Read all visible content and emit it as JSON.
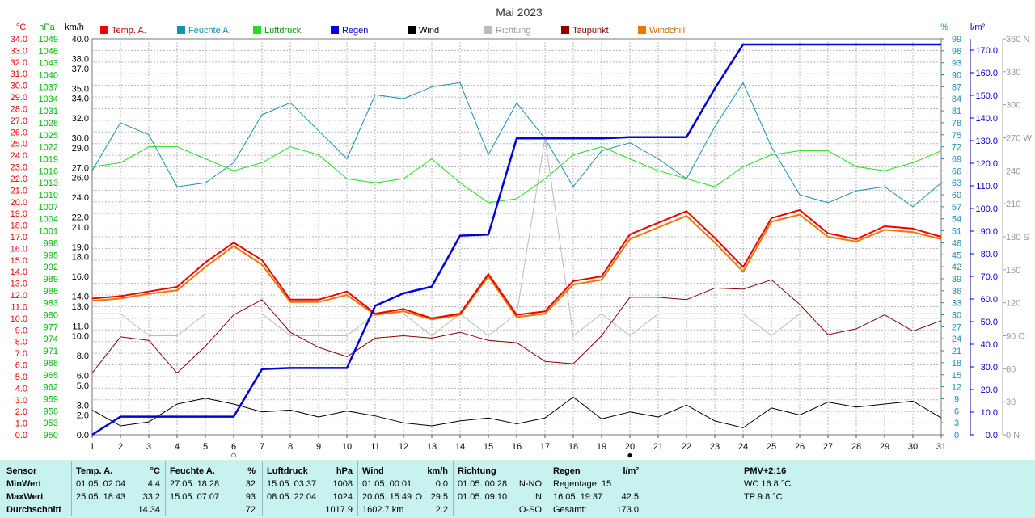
{
  "chart_data": {
    "type": "line",
    "title": "Mai 2023",
    "x": [
      1,
      2,
      3,
      4,
      5,
      6,
      7,
      8,
      9,
      10,
      11,
      12,
      13,
      14,
      15,
      16,
      17,
      18,
      19,
      20,
      21,
      22,
      23,
      24,
      25,
      26,
      27,
      28,
      29,
      30,
      31
    ],
    "axes": {
      "temp": {
        "unit": "°C",
        "min": 0,
        "max": 34,
        "color": "#ff0000"
      },
      "pressure": {
        "unit": "hPa",
        "min": 950,
        "max": 1049,
        "color": "#00cc00"
      },
      "wind": {
        "unit": "km/h",
        "min": 0,
        "max": 40,
        "color": "#000000"
      },
      "humidity": {
        "unit": "%",
        "min": 0,
        "max": 99,
        "color": "#00a0c0"
      },
      "rain": {
        "unit": "l/m²",
        "min": 0,
        "max": 175,
        "color": "#0000cc"
      },
      "direction": {
        "unit": "",
        "min": 0,
        "max": 360,
        "color": "#999999"
      }
    },
    "temp_ticks": [
      34.0,
      33.0,
      32.0,
      31.0,
      30.0,
      29.0,
      28.0,
      27.0,
      26.0,
      25.0,
      24.0,
      23.0,
      22.0,
      21.0,
      20.0,
      19.0,
      18.0,
      17.0,
      16.0,
      15.0,
      14.0,
      13.0,
      12.0,
      11.0,
      10.0,
      9.0,
      8.0,
      7.0,
      6.0,
      5.0,
      4.0,
      3.0,
      2.0,
      1.0,
      0.0
    ],
    "pressure_ticks": [
      1049,
      1046,
      1043,
      1040,
      1037,
      1034,
      1031,
      1028,
      1025,
      1022,
      1019,
      1016,
      1013,
      1010,
      1007,
      1004,
      1001,
      998,
      995,
      992,
      989,
      986,
      983,
      980,
      977,
      974,
      971,
      968,
      965,
      962,
      959,
      956,
      953,
      950
    ],
    "wind_ticks": [
      "40.0",
      "38.0",
      "37.0",
      "35.0",
      "34.0",
      "32.0",
      "30.0",
      "29.0",
      "27.0",
      "26.0",
      "24.0",
      "22.0",
      "21.0",
      "19.0",
      "18.0",
      "16.0",
      "14.0",
      "13.0",
      "11.0",
      "10.0",
      "8.0",
      "6.0",
      "5.0",
      "3.0",
      "2.0",
      "0.0"
    ],
    "humidity_ticks": [
      99,
      96,
      93,
      90,
      87,
      84,
      81,
      78,
      75,
      72,
      69,
      66,
      63,
      60,
      57,
      54,
      51,
      48,
      45,
      42,
      39,
      36,
      33,
      30,
      27,
      24,
      21,
      18,
      15,
      12,
      9,
      6,
      3,
      0
    ],
    "rain_ticks": [
      "170.0",
      "160.0",
      "150.0",
      "140.0",
      "130.0",
      "120.0",
      "110.0",
      "100.0",
      "90.0",
      "80.0",
      "70.0",
      "60.0",
      "50.0",
      "40.0",
      "30.0",
      "20.0",
      "10.0",
      "0.0"
    ],
    "direction_ticks": [
      {
        "v": 360,
        "t": "360 N"
      },
      {
        "v": 330,
        "t": "330"
      },
      {
        "v": 300,
        "t": "300"
      },
      {
        "v": 270,
        "t": "270 W"
      },
      {
        "v": 240,
        "t": "240"
      },
      {
        "v": 210,
        "t": "210"
      },
      {
        "v": 180,
        "t": "180 S"
      },
      {
        "v": 150,
        "t": "150"
      },
      {
        "v": 120,
        "t": "120"
      },
      {
        "v": 90,
        "t": "90 O"
      },
      {
        "v": 60,
        "t": "60"
      },
      {
        "v": 30,
        "t": "30"
      },
      {
        "v": 0,
        "t": "0 N"
      }
    ],
    "series": [
      {
        "name": "Feuchte A.",
        "axis": "humidity",
        "color": "#1a8fb3",
        "width": 1,
        "values": [
          66,
          78,
          75,
          62,
          63,
          68,
          80,
          83,
          76,
          69,
          85,
          84,
          87,
          88,
          70,
          83,
          74,
          62,
          71,
          73,
          69,
          64,
          77,
          88,
          72,
          60,
          58,
          61,
          62,
          57,
          63
        ]
      },
      {
        "name": "Luftdruck",
        "axis": "pressure",
        "color": "#22dd22",
        "width": 1,
        "values": [
          1017,
          1018,
          1022,
          1022,
          1019,
          1016,
          1018,
          1022,
          1020,
          1014,
          1013,
          1014,
          1019,
          1013,
          1008,
          1009,
          1014,
          1020,
          1022,
          1019,
          1016,
          1014,
          1012,
          1017,
          1020,
          1021,
          1021,
          1017,
          1016,
          1018,
          1021
        ]
      },
      {
        "name": "Richtung",
        "axis": "direction",
        "color": "#bbbbbb",
        "width": 1,
        "values": [
          110,
          110,
          90,
          90,
          110,
          110,
          110,
          90,
          90,
          90,
          110,
          110,
          90,
          110,
          90,
          110,
          270,
          90,
          110,
          90,
          110,
          110,
          110,
          110,
          90,
          110,
          110,
          110,
          110,
          110,
          110
        ]
      },
      {
        "name": "Wind",
        "axis": "wind",
        "color": "#000000",
        "width": 1,
        "values": [
          2.5,
          0.9,
          1.3,
          3.1,
          3.7,
          3.1,
          2.3,
          2.5,
          1.8,
          2.4,
          1.9,
          1.2,
          0.9,
          1.4,
          1.7,
          1.1,
          1.7,
          3.8,
          1.6,
          2.3,
          1.8,
          3.0,
          1.4,
          0.7,
          2.7,
          2.0,
          3.3,
          2.8,
          3.1,
          3.4,
          1.7
        ]
      },
      {
        "name": "Taupunkt",
        "axis": "temp",
        "color": "#880000",
        "width": 1,
        "values": [
          5.3,
          8.4,
          8.1,
          5.3,
          7.6,
          10.3,
          11.6,
          8.8,
          7.5,
          6.7,
          8.3,
          8.5,
          8.3,
          8.8,
          8.1,
          7.9,
          6.3,
          6.1,
          8.5,
          11.8,
          11.8,
          11.6,
          12.6,
          12.5,
          13.3,
          11.2,
          8.6,
          9.1,
          10.3,
          8.9,
          9.8
        ]
      },
      {
        "name": "Windchill",
        "axis": "temp",
        "color": "#ee7700",
        "width": 2,
        "values": [
          11.5,
          11.7,
          12.1,
          12.4,
          14.4,
          16.2,
          14.6,
          11.4,
          11.4,
          12.0,
          10.3,
          10.6,
          9.9,
          10.3,
          13.6,
          10.1,
          10.4,
          12.9,
          13.3,
          16.8,
          17.8,
          18.8,
          16.5,
          14.0,
          18.3,
          18.9,
          17.0,
          16.6,
          17.6,
          17.4,
          16.8
        ]
      },
      {
        "name": "Temp. A.",
        "axis": "temp",
        "color": "#ee0000",
        "width": 2,
        "values": [
          11.7,
          11.9,
          12.3,
          12.7,
          14.8,
          16.5,
          15.0,
          11.6,
          11.6,
          12.3,
          10.4,
          10.8,
          10.0,
          10.4,
          13.8,
          10.3,
          10.6,
          13.2,
          13.6,
          17.2,
          18.2,
          19.2,
          16.9,
          14.4,
          18.6,
          19.3,
          17.3,
          16.8,
          17.9,
          17.7,
          17.0
        ]
      },
      {
        "name": "Regen",
        "axis": "rain",
        "color": "#0000dd",
        "width": 2.5,
        "step": true,
        "values": [
          0,
          8,
          8,
          8,
          8,
          8,
          29,
          29.5,
          29.5,
          29.5,
          57,
          62.5,
          65.5,
          88,
          88.5,
          131,
          131,
          131,
          131,
          131.5,
          131.5,
          131.5,
          153,
          172.5,
          172.5,
          172.5,
          172.5,
          172.5,
          172.5,
          172.5,
          172.5
        ]
      }
    ],
    "legend": [
      {
        "name": "Temp. A.",
        "color": "#ee0000",
        "text_color": "#cc0000"
      },
      {
        "name": "Feuchte A.",
        "color": "#1a8fb3",
        "text_color": "#1a8fb3"
      },
      {
        "name": "Luftdruck",
        "color": "#22dd22",
        "text_color": "#009900"
      },
      {
        "name": "Regen",
        "color": "#0000dd",
        "text_color": "#0000cc"
      },
      {
        "name": "Wind",
        "color": "#000000",
        "text_color": "#000000"
      },
      {
        "name": "Richtung",
        "color": "#bbbbbb",
        "text_color": "#999999"
      },
      {
        "name": "Taupunkt",
        "color": "#880000",
        "text_color": "#880000"
      },
      {
        "name": "Windchill",
        "color": "#ee7700",
        "text_color": "#cc6600"
      }
    ],
    "markers": [
      {
        "day": 6,
        "symbol": "○"
      },
      {
        "day": 20,
        "symbol": "●"
      }
    ],
    "grid": true
  },
  "footer": {
    "sensor": {
      "title": "Sensor",
      "rows": [
        "MinWert",
        "MaxWert",
        "Durchschnitt"
      ]
    },
    "temp": {
      "title": "Temp. A.",
      "unit": "°C",
      "min_ts": "01.05.  02:04",
      "min_v": "4.4",
      "max_ts": "25.05.  18:43",
      "max_v": "33.2",
      "avg": "14.34"
    },
    "humidity": {
      "title": "Feuchte A.",
      "unit": "%",
      "min_ts": "27.05.  18:28",
      "min_v": "32",
      "max_ts": "15.05.  07:07",
      "max_v": "93",
      "avg": "72"
    },
    "pressure": {
      "title": "Luftdruck",
      "unit": "hPa",
      "min_ts": "15.05.  03:37",
      "min_v": "1008",
      "max_ts": "08.05.  22:04",
      "max_v": "1024",
      "avg": "1017.9"
    },
    "wind": {
      "title": "Wind",
      "unit": "km/h",
      "min_ts": "01.05.  00:01",
      "min_v": "0.0",
      "max_ts": "20.05.  15:49",
      "max_dir": "O",
      "max_v": "29.5",
      "total": "1602.7 km",
      "avg": "2.2"
    },
    "direction": {
      "title": "Richtung",
      "min_ts": "01.05.  00:28",
      "min_v": "N-NO",
      "max_ts": "01.05.  09:10",
      "max_v": "N",
      "avg": "O-SO"
    },
    "rain": {
      "title": "Regen",
      "unit": "l/m²",
      "days": "Regentage: 15",
      "max_ts": "16.05.  19:37",
      "max_v": "42.5",
      "total_label": "Gesamt:",
      "total": "173.0"
    },
    "pmv": {
      "title": "PMV+2:16",
      "wc": "WC 16.8 °C",
      "tp": "TP 9.8 °C"
    }
  }
}
